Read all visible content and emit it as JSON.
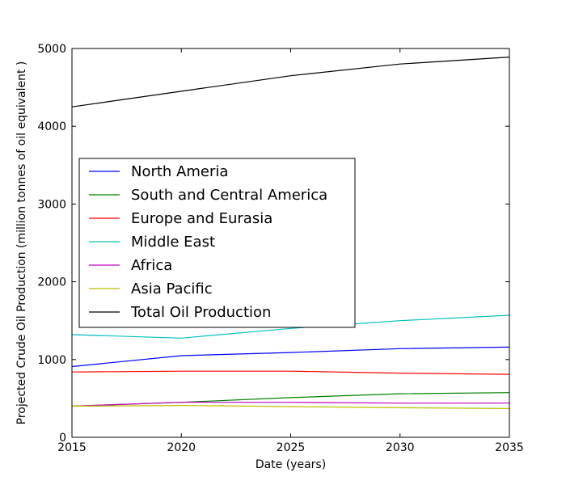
{
  "chart_data": {
    "type": "line",
    "xlabel": "Date (years)",
    "ylabel": "Projected Crude Oil Production (million tonnes of oil equivalent )",
    "xlim": [
      2015,
      2035
    ],
    "ylim": [
      0,
      5000
    ],
    "xticks": [
      "2015",
      "2020",
      "2025",
      "2030",
      "2035"
    ],
    "yticks": [
      "0",
      "1000",
      "2000",
      "3000",
      "4000",
      "5000"
    ],
    "legend_position": "center-left",
    "grid": false,
    "x": [
      2015,
      2020,
      2025,
      2030,
      2035
    ],
    "series": [
      {
        "name": "North Ameria",
        "color": "#0000ff",
        "values": [
          910,
          1050,
          1090,
          1140,
          1160
        ]
      },
      {
        "name": "South and Central America",
        "color": "#008000",
        "values": [
          400,
          450,
          510,
          560,
          575
        ]
      },
      {
        "name": "Europe and Eurasia",
        "color": "#ff0000",
        "values": [
          840,
          850,
          850,
          825,
          810
        ]
      },
      {
        "name": "Middle East",
        "color": "#00bfbf",
        "values": [
          1320,
          1275,
          1400,
          1500,
          1570
        ]
      },
      {
        "name": "Africa",
        "color": "#bf00bf",
        "values": [
          400,
          450,
          450,
          440,
          440
        ]
      },
      {
        "name": "Asia Pacific",
        "color": "#bfbf00",
        "values": [
          400,
          410,
          395,
          380,
          370
        ]
      },
      {
        "name": "Total Oil Production",
        "color": "#000000",
        "values": [
          4250,
          4450,
          4650,
          4800,
          4890
        ]
      }
    ]
  }
}
